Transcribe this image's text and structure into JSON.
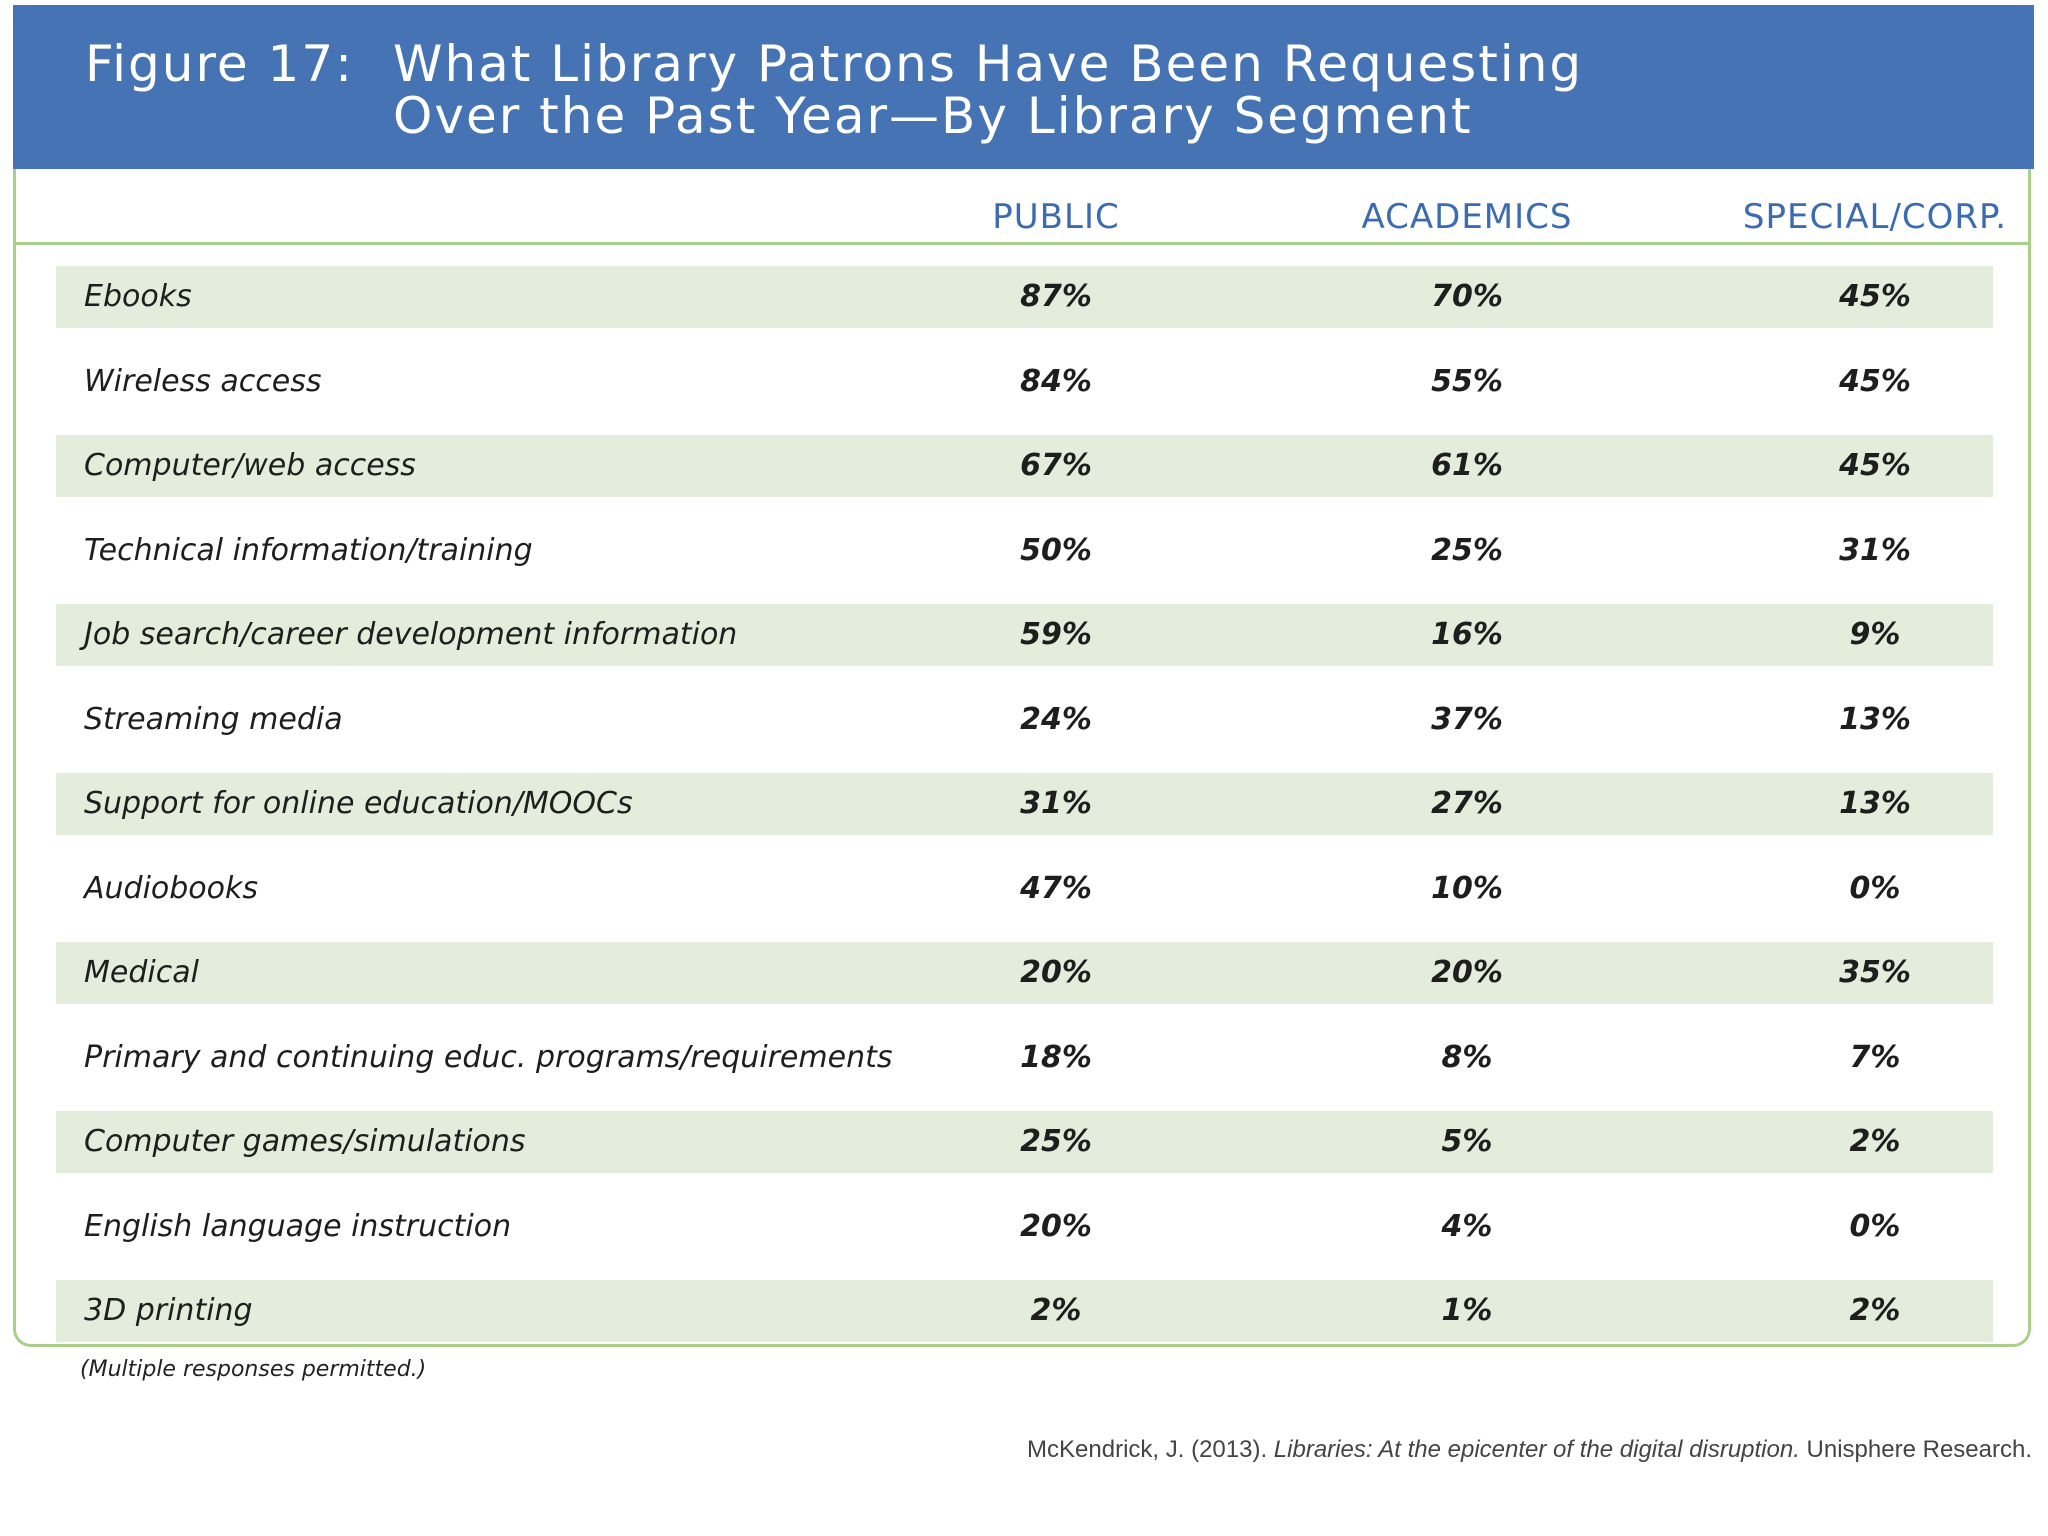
{
  "title": {
    "prefix": "Figure 17:",
    "line1": "What Library Patrons Have Been Requesting",
    "line2": "Over the Past Year—By Library Segment"
  },
  "chart_data": {
    "type": "table",
    "title": "Figure 17: What Library Patrons Have Been Requesting Over the Past Year—By Library Segment",
    "columns": [
      "PUBLIC",
      "ACADEMICS",
      "SPECIAL/CORP."
    ],
    "rows": [
      {
        "label": "Ebooks",
        "values": [
          "87%",
          "70%",
          "45%"
        ]
      },
      {
        "label": "Wireless access",
        "values": [
          "84%",
          "55%",
          "45%"
        ]
      },
      {
        "label": "Computer/web access",
        "values": [
          "67%",
          "61%",
          "45%"
        ]
      },
      {
        "label": "Technical information/training",
        "values": [
          "50%",
          "25%",
          "31%"
        ]
      },
      {
        "label": "Job search/career development information",
        "values": [
          "59%",
          "16%",
          "9%"
        ]
      },
      {
        "label": "Streaming media",
        "values": [
          "24%",
          "37%",
          "13%"
        ]
      },
      {
        "label": "Support for online education/MOOCs",
        "values": [
          "31%",
          "27%",
          "13%"
        ]
      },
      {
        "label": "Audiobooks",
        "values": [
          "47%",
          "10%",
          "0%"
        ]
      },
      {
        "label": "Medical",
        "values": [
          "20%",
          "20%",
          "35%"
        ]
      },
      {
        "label": "Primary and continuing educ. programs/requirements",
        "values": [
          "18%",
          "8%",
          "7%"
        ]
      },
      {
        "label": "Computer games/simulations",
        "values": [
          "25%",
          "5%",
          "2%"
        ]
      },
      {
        "label": "English language instruction",
        "values": [
          "20%",
          "4%",
          "0%"
        ]
      },
      {
        "label": "3D printing",
        "values": [
          "2%",
          "1%",
          "2%"
        ]
      }
    ]
  },
  "note": "(Multiple responses permitted.)",
  "source": {
    "author": "McKendrick, J. (2013). ",
    "work": "Libraries: At the epicenter of the digital disruption.",
    "publisher": " Unisphere Research."
  },
  "colors": {
    "title_bar": "#4673b4",
    "header_text": "#3c6cb0",
    "border": "#a9cf8a",
    "row_shade": "#e4eddb"
  }
}
